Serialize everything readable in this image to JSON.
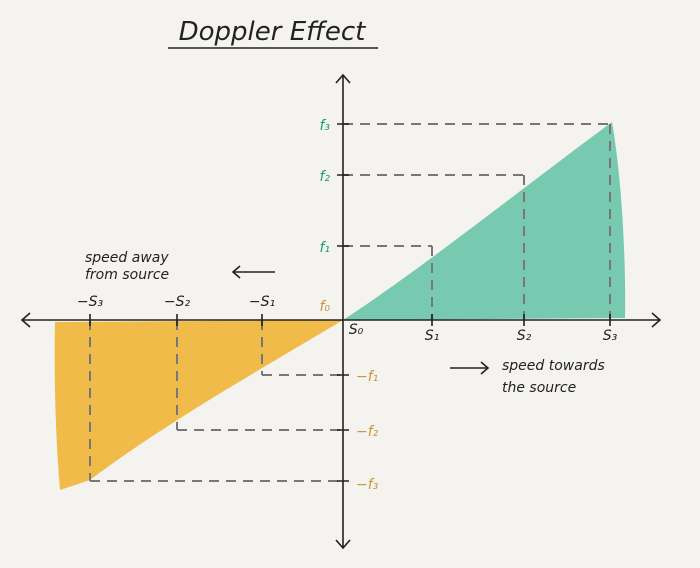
{
  "title": "Doppler Effect",
  "y_labels": {
    "positive": [
      "f₀",
      "f₁",
      "f₂",
      "f₃"
    ],
    "negative": [
      "−f₁",
      "−f₂",
      "−f₃"
    ]
  },
  "x_labels": {
    "positive": [
      "S₀",
      "S₁",
      "S₂",
      "S₃"
    ],
    "negative": [
      "−S₁",
      "−S₂",
      "−S₃"
    ]
  },
  "annotations": {
    "away": [
      "speed away",
      "from source"
    ],
    "towards": [
      "speed towards",
      "the source"
    ]
  }
}
